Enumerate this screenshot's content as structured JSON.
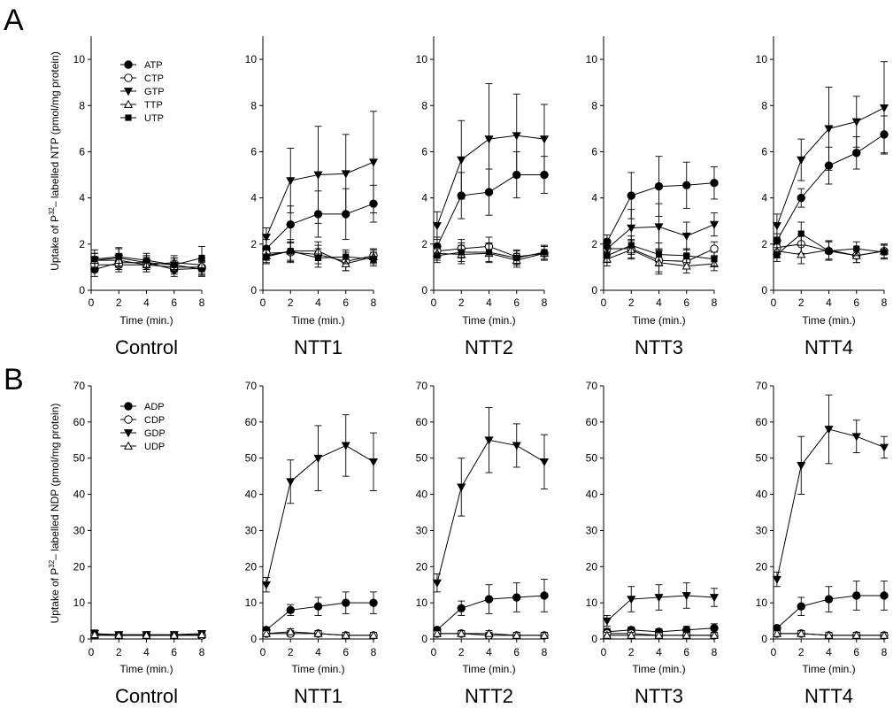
{
  "chart_data": [
    {
      "panel": "A",
      "type": "line",
      "ylabel": "Uptake of P32-labelled NTP (pmol/mg protein)",
      "ylabel_prefix": "Uptake of P",
      "ylabel_sup": "32",
      "ylabel_suffix": "– labelled NTP (pmol/mg protein)",
      "xlabel": "Time (min.)",
      "xticks": [
        0,
        2,
        4,
        6,
        8
      ],
      "yticks": [
        0,
        2,
        4,
        6,
        8,
        10
      ],
      "xlim": [
        0,
        8
      ],
      "ylim": [
        0,
        11
      ],
      "legend": {
        "panel": "Control",
        "placement": "top-left"
      },
      "series_meta": [
        {
          "name": "ATP",
          "marker": "circle-filled"
        },
        {
          "name": "CTP",
          "marker": "circle-open"
        },
        {
          "name": "GTP",
          "marker": "triangle-down-filled"
        },
        {
          "name": "TTP",
          "marker": "triangle-up-open"
        },
        {
          "name": "UTP",
          "marker": "square-filled"
        }
      ],
      "panels": [
        {
          "title": "Control",
          "x": [
            0.25,
            2,
            4,
            6,
            8
          ],
          "series": [
            {
              "name": "ATP",
              "values": [
                0.9,
                1.2,
                1.2,
                0.9,
                0.95
              ],
              "errors": [
                0.3,
                0.3,
                0.3,
                0.3,
                0.3
              ]
            },
            {
              "name": "CTP",
              "values": [
                1.1,
                1.1,
                1.1,
                1.0,
                1.0
              ],
              "errors": [
                0.3,
                0.3,
                0.3,
                0.3,
                0.3
              ]
            },
            {
              "name": "GTP",
              "values": [
                1.3,
                1.4,
                1.2,
                1.1,
                0.9
              ],
              "errors": [
                0.3,
                0.4,
                0.3,
                0.3,
                0.3
              ]
            },
            {
              "name": "TTP",
              "values": [
                1.3,
                1.3,
                1.1,
                1.2,
                1.1
              ],
              "errors": [
                0.3,
                0.3,
                0.3,
                0.3,
                0.3
              ]
            },
            {
              "name": "UTP",
              "values": [
                1.35,
                1.45,
                1.3,
                1.1,
                1.4
              ],
              "errors": [
                0.4,
                0.4,
                0.3,
                0.3,
                0.5
              ]
            }
          ]
        },
        {
          "title": "NTT1",
          "x": [
            0.25,
            2,
            4,
            6,
            8
          ],
          "series": [
            {
              "name": "ATP",
              "values": [
                1.8,
                2.85,
                3.3,
                3.3,
                3.75
              ],
              "errors": [
                0.4,
                0.8,
                1.0,
                1.1,
                0.8
              ]
            },
            {
              "name": "CTP",
              "values": [
                1.6,
                1.65,
                1.55,
                1.25,
                1.5
              ],
              "errors": [
                0.3,
                0.4,
                0.4,
                0.4,
                0.3
              ]
            },
            {
              "name": "GTP",
              "values": [
                2.3,
                4.75,
                5.0,
                5.05,
                5.55
              ],
              "errors": [
                0.4,
                1.4,
                2.1,
                1.7,
                2.2
              ]
            },
            {
              "name": "TTP",
              "values": [
                1.5,
                1.7,
                1.7,
                1.15,
                1.45
              ],
              "errors": [
                0.3,
                0.4,
                0.4,
                0.3,
                0.3
              ]
            },
            {
              "name": "UTP",
              "values": [
                1.45,
                1.7,
                1.4,
                1.45,
                1.35
              ],
              "errors": [
                0.3,
                0.5,
                0.4,
                0.3,
                0.3
              ]
            }
          ]
        },
        {
          "title": "NTT2",
          "x": [
            0.25,
            2,
            4,
            6,
            8
          ],
          "series": [
            {
              "name": "ATP",
              "values": [
                1.9,
                4.1,
                4.25,
                5.0,
                5.0
              ],
              "errors": [
                0.4,
                1.0,
                1.0,
                1.0,
                0.8
              ]
            },
            {
              "name": "CTP",
              "values": [
                1.7,
                1.8,
                1.9,
                1.45,
                1.6
              ],
              "errors": [
                0.3,
                0.4,
                0.4,
                0.3,
                0.3
              ]
            },
            {
              "name": "GTP",
              "values": [
                2.8,
                5.65,
                6.55,
                6.7,
                6.55
              ],
              "errors": [
                0.6,
                1.7,
                2.4,
                1.8,
                1.5
              ]
            },
            {
              "name": "TTP",
              "values": [
                1.6,
                1.55,
                1.6,
                1.3,
                1.6
              ],
              "errors": [
                0.3,
                0.4,
                0.4,
                0.3,
                0.3
              ]
            },
            {
              "name": "UTP",
              "values": [
                1.5,
                1.65,
                1.65,
                1.4,
                1.65
              ],
              "errors": [
                0.3,
                0.4,
                0.4,
                0.3,
                0.3
              ]
            }
          ]
        },
        {
          "title": "NTT3",
          "x": [
            0.25,
            2,
            4,
            6,
            8
          ],
          "series": [
            {
              "name": "ATP",
              "values": [
                2.1,
                4.1,
                4.5,
                4.55,
                4.65
              ],
              "errors": [
                0.3,
                1.0,
                1.3,
                1.0,
                0.7
              ]
            },
            {
              "name": "CTP",
              "values": [
                1.8,
                1.8,
                1.3,
                1.25,
                1.8
              ],
              "errors": [
                0.3,
                0.4,
                0.5,
                0.3,
                0.3
              ]
            },
            {
              "name": "GTP",
              "values": [
                1.8,
                2.7,
                2.75,
                2.35,
                2.85
              ],
              "errors": [
                0.3,
                0.8,
                1.0,
                0.6,
                0.5
              ]
            },
            {
              "name": "TTP",
              "values": [
                1.35,
                1.75,
                1.2,
                1.05,
                1.15
              ],
              "errors": [
                0.3,
                0.4,
                0.5,
                0.3,
                0.3
              ]
            },
            {
              "name": "UTP",
              "values": [
                1.5,
                1.95,
                1.55,
                1.5,
                1.35
              ],
              "errors": [
                0.3,
                0.4,
                0.5,
                0.3,
                0.3
              ]
            }
          ]
        },
        {
          "title": "NTT4",
          "x": [
            0.25,
            2,
            4,
            6,
            8
          ],
          "series": [
            {
              "name": "ATP",
              "values": [
                2.15,
                4.0,
                5.4,
                5.95,
                6.75
              ],
              "errors": [
                0.3,
                0.4,
                0.8,
                0.7,
                0.8
              ]
            },
            {
              "name": "CTP",
              "values": [
                1.85,
                2.0,
                1.7,
                1.5,
                1.7
              ],
              "errors": [
                0.3,
                0.4,
                0.4,
                0.3,
                0.3
              ]
            },
            {
              "name": "GTP",
              "values": [
                2.8,
                5.65,
                7.0,
                7.3,
                7.9
              ],
              "errors": [
                0.5,
                0.9,
                1.8,
                1.1,
                2.0
              ]
            },
            {
              "name": "TTP",
              "values": [
                1.7,
                1.55,
                1.75,
                1.5,
                1.7
              ],
              "errors": [
                0.3,
                0.4,
                0.4,
                0.3,
                0.3
              ]
            },
            {
              "name": "UTP",
              "values": [
                1.55,
                2.45,
                1.7,
                1.8,
                1.65
              ],
              "errors": [
                0.3,
                0.5,
                0.4,
                0.3,
                0.3
              ]
            }
          ]
        }
      ]
    },
    {
      "panel": "B",
      "type": "line",
      "ylabel": "Uptake of P32-labelled NDP (pmol/mg protein)",
      "ylabel_prefix": "Uptake of P",
      "ylabel_sup": "32",
      "ylabel_suffix": "– labelled NDP (pmol/mg protein)",
      "xlabel": "Time (min.)",
      "xticks": [
        0,
        2,
        4,
        6,
        8
      ],
      "yticks": [
        0,
        10,
        20,
        30,
        40,
        50,
        60,
        70
      ],
      "xlim": [
        0,
        8
      ],
      "ylim": [
        0,
        70
      ],
      "legend": {
        "panel": "Control",
        "placement": "top-left"
      },
      "series_meta": [
        {
          "name": "ADP",
          "marker": "circle-filled"
        },
        {
          "name": "CDP",
          "marker": "circle-open"
        },
        {
          "name": "GDP",
          "marker": "triangle-down-filled"
        },
        {
          "name": "UDP",
          "marker": "triangle-up-open"
        }
      ],
      "panels": [
        {
          "title": "Control",
          "x": [
            0.25,
            2,
            4,
            6,
            8
          ],
          "series": [
            {
              "name": "ADP",
              "values": [
                1.2,
                1.0,
                1.0,
                1.0,
                1.0
              ],
              "errors": [
                1.0,
                0.8,
                0.8,
                0.8,
                0.8
              ]
            },
            {
              "name": "CDP",
              "values": [
                1.0,
                1.0,
                1.0,
                1.0,
                1.0
              ],
              "errors": [
                1.0,
                0.8,
                0.8,
                0.8,
                0.8
              ]
            },
            {
              "name": "GDP",
              "values": [
                1.5,
                1.2,
                1.2,
                1.2,
                1.5
              ],
              "errors": [
                1.0,
                0.8,
                0.8,
                0.8,
                0.8
              ]
            },
            {
              "name": "UDP",
              "values": [
                1.2,
                1.0,
                1.0,
                1.0,
                1.2
              ],
              "errors": [
                1.0,
                0.8,
                0.8,
                0.8,
                0.8
              ]
            }
          ]
        },
        {
          "title": "NTT1",
          "x": [
            0.25,
            2,
            4,
            6,
            8
          ],
          "series": [
            {
              "name": "ADP",
              "values": [
                2.5,
                8.0,
                9.0,
                10.0,
                10.0
              ],
              "errors": [
                0.8,
                1.5,
                2.5,
                3.0,
                3.0
              ]
            },
            {
              "name": "CDP",
              "values": [
                1.5,
                1.5,
                1.5,
                1.0,
                1.0
              ],
              "errors": [
                0.8,
                0.8,
                0.8,
                0.8,
                0.8
              ]
            },
            {
              "name": "GDP",
              "values": [
                15.0,
                43.5,
                50.0,
                53.5,
                49.0
              ],
              "errors": [
                2.0,
                6.0,
                9.0,
                8.5,
                8.0
              ]
            },
            {
              "name": "UDP",
              "values": [
                1.5,
                2.0,
                1.5,
                1.0,
                1.0
              ],
              "errors": [
                0.8,
                0.8,
                0.8,
                0.8,
                0.8
              ]
            }
          ]
        },
        {
          "title": "NTT2",
          "x": [
            0.25,
            2,
            4,
            6,
            8
          ],
          "series": [
            {
              "name": "ADP",
              "values": [
                2.5,
                8.5,
                11.0,
                11.5,
                12.0
              ],
              "errors": [
                0.8,
                2.0,
                4.0,
                4.0,
                4.5
              ]
            },
            {
              "name": "CDP",
              "values": [
                1.5,
                1.5,
                1.0,
                1.0,
                1.0
              ],
              "errors": [
                0.8,
                0.8,
                0.8,
                0.8,
                0.8
              ]
            },
            {
              "name": "GDP",
              "values": [
                15.5,
                42.0,
                55.0,
                53.5,
                49.0
              ],
              "errors": [
                2.5,
                8.0,
                9.0,
                6.0,
                7.5
              ]
            },
            {
              "name": "UDP",
              "values": [
                1.5,
                1.5,
                1.5,
                1.0,
                1.0
              ],
              "errors": [
                0.8,
                0.8,
                0.8,
                0.8,
                0.8
              ]
            }
          ]
        },
        {
          "title": "NTT3",
          "x": [
            0.25,
            2,
            4,
            6,
            8
          ],
          "series": [
            {
              "name": "ADP",
              "values": [
                2.0,
                2.5,
                2.0,
                2.5,
                3.0
              ],
              "errors": [
                0.8,
                0.8,
                0.8,
                1.0,
                1.2
              ]
            },
            {
              "name": "CDP",
              "values": [
                1.5,
                1.5,
                1.0,
                1.0,
                1.0
              ],
              "errors": [
                0.8,
                0.8,
                0.8,
                0.8,
                0.8
              ]
            },
            {
              "name": "GDP",
              "values": [
                5.0,
                11.0,
                11.5,
                12.0,
                11.5
              ],
              "errors": [
                1.5,
                3.5,
                3.5,
                3.5,
                2.5
              ]
            },
            {
              "name": "UDP",
              "values": [
                1.0,
                1.0,
                1.0,
                1.0,
                1.0
              ],
              "errors": [
                0.8,
                0.8,
                0.8,
                0.8,
                0.8
              ]
            }
          ]
        },
        {
          "title": "NTT4",
          "x": [
            0.25,
            2,
            4,
            6,
            8
          ],
          "series": [
            {
              "name": "ADP",
              "values": [
                3.0,
                9.0,
                11.0,
                12.0,
                12.0
              ],
              "errors": [
                0.8,
                2.5,
                3.5,
                4.0,
                4.0
              ]
            },
            {
              "name": "CDP",
              "values": [
                1.5,
                1.5,
                1.0,
                1.0,
                1.0
              ],
              "errors": [
                0.8,
                0.8,
                0.8,
                0.8,
                0.8
              ]
            },
            {
              "name": "GDP",
              "values": [
                16.5,
                48.0,
                58.0,
                56.0,
                53.0
              ],
              "errors": [
                2.0,
                8.0,
                9.5,
                4.5,
                3.0
              ]
            },
            {
              "name": "UDP",
              "values": [
                1.5,
                1.5,
                1.0,
                1.0,
                1.0
              ],
              "errors": [
                0.8,
                0.8,
                0.8,
                0.8,
                0.8
              ]
            }
          ]
        }
      ]
    }
  ]
}
